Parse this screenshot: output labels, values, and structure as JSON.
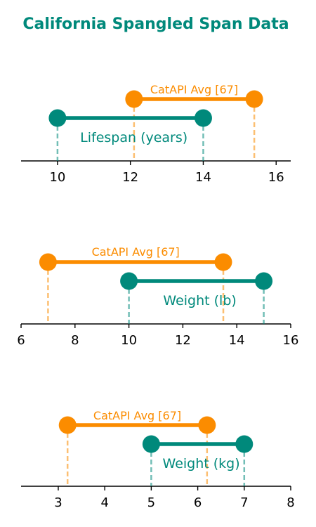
{
  "chart_data": {
    "type": "span",
    "title": "California Spangled Span Data",
    "colors": {
      "title": "#00897b",
      "breed": "#00897b",
      "reference": "#fb8c00",
      "axis": "#000000"
    },
    "panels": [
      {
        "xlim": [
          9,
          16.4
        ],
        "ticks": [
          10,
          12,
          14,
          16
        ],
        "breed": {
          "label": "Lifespan (years)",
          "min": 10,
          "max": 14
        },
        "reference": {
          "label": "CatAPI Avg [67]",
          "min": 12.1,
          "max": 15.4
        }
      },
      {
        "xlim": [
          6,
          16
        ],
        "ticks": [
          6,
          8,
          10,
          12,
          14,
          16
        ],
        "breed": {
          "label": "Weight (lb)",
          "min": 10,
          "max": 15
        },
        "reference": {
          "label": "CatAPI Avg [67]",
          "min": 7,
          "max": 13.5
        }
      },
      {
        "xlim": [
          2.2,
          8
        ],
        "ticks": [
          3,
          4,
          5,
          6,
          7,
          8
        ],
        "breed": {
          "label": "Weight (kg)",
          "min": 5,
          "max": 7
        },
        "reference": {
          "label": "CatAPI Avg [67]",
          "min": 3.2,
          "max": 6.2
        }
      }
    ]
  }
}
